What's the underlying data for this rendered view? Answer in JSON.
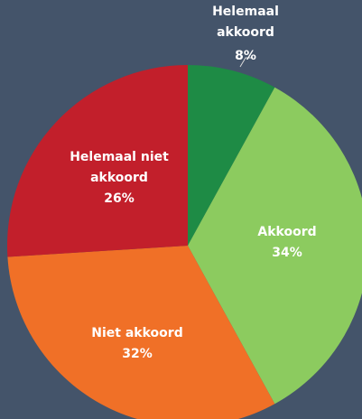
{
  "chart_data": {
    "type": "pie",
    "categories": [
      "Helemaal akkoord",
      "Akkoord",
      "Niet akkoord",
      "Helemaal niet akkoord"
    ],
    "values": [
      8,
      34,
      32,
      26
    ],
    "value_labels": [
      "8%",
      "34%",
      "32%",
      "26%"
    ],
    "colors": [
      "#1e8b45",
      "#8ccb5f",
      "#f07027",
      "#c21f2b"
    ]
  }
}
